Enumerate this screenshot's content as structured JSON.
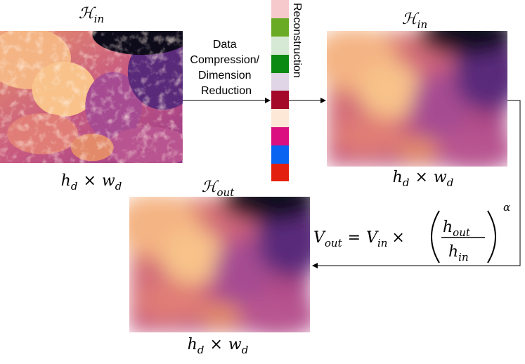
{
  "images": [
    {
      "title": {
        "base": "ℋ",
        "sub": "in"
      },
      "size": {
        "h": "h",
        "h_sub": "d",
        "times": "×",
        "w": "w",
        "w_sub": "d"
      }
    },
    {
      "title": {
        "base": "ℋ",
        "sub": "in"
      },
      "size": {
        "h": "h",
        "h_sub": "d",
        "times": "×",
        "w": "w",
        "w_sub": "d"
      }
    },
    {
      "title": {
        "base": "ℋ",
        "sub": "out"
      },
      "size": {
        "h": "h",
        "h_sub": "d",
        "times": "×",
        "w": "w",
        "w_sub": "d"
      }
    }
  ],
  "compression_label": [
    "Data",
    "Compression/",
    "Dimension",
    "Reduction"
  ],
  "reconstruction_label": "Reconstruction",
  "formula": {
    "lhs": {
      "base": "V",
      "sub": "out"
    },
    "equals": "=",
    "rhs": {
      "base": "V",
      "sub": "in"
    },
    "times": "×",
    "numerator": {
      "base": "h",
      "sub": "out"
    },
    "denominator": {
      "base": "h",
      "sub": "in"
    },
    "exponent": "α"
  }
}
